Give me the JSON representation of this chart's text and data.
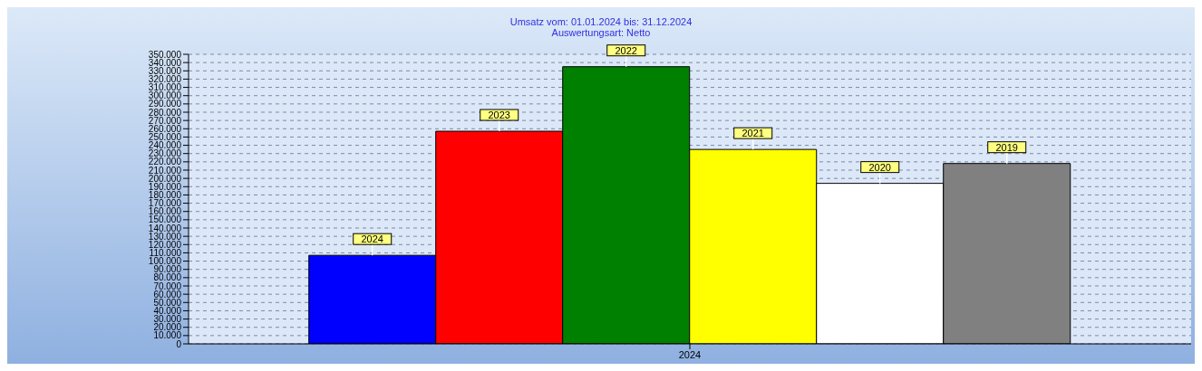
{
  "chart_data": {
    "type": "bar",
    "title": "Umsatz vom: 01.01.2024 bis: 31.12.2024",
    "subtitle": "Auswertungsart: Netto",
    "categories": [
      "2024"
    ],
    "series": [
      {
        "name": "2024",
        "color": "#0000ff",
        "values": [
          107000
        ]
      },
      {
        "name": "2023",
        "color": "#ff0000",
        "values": [
          257000
        ]
      },
      {
        "name": "2022",
        "color": "#008000",
        "values": [
          335000
        ]
      },
      {
        "name": "2021",
        "color": "#ffff00",
        "values": [
          235000
        ]
      },
      {
        "name": "2020",
        "color": "#ffffff",
        "values": [
          194000
        ]
      },
      {
        "name": "2019",
        "color": "#808080",
        "values": [
          218000
        ]
      }
    ],
    "ylim": [
      0,
      350000
    ],
    "yticks": [
      0,
      {
        "value": 10000,
        "label": "10.000"
      },
      {
        "value": 20000,
        "label": "20.000"
      },
      {
        "value": 30000,
        "label": "30.000"
      },
      {
        "value": 40000,
        "label": "40.000"
      },
      {
        "value": 50000,
        "label": "50.000"
      },
      {
        "value": 60000,
        "label": "60.000"
      },
      {
        "value": 70000,
        "label": "70.000"
      },
      {
        "value": 80000,
        "label": "80.000"
      },
      {
        "value": 90000,
        "label": "90.000"
      },
      {
        "value": 100000,
        "label": "100.000"
      },
      {
        "value": 110000,
        "label": "110.000"
      },
      {
        "value": 120000,
        "label": "120.000"
      },
      {
        "value": 130000,
        "label": "130.000"
      },
      {
        "value": 140000,
        "label": "140.000"
      },
      {
        "value": 150000,
        "label": "150.000"
      },
      {
        "value": 160000,
        "label": "160.000"
      },
      {
        "value": 170000,
        "label": "170.000"
      },
      {
        "value": 180000,
        "label": "180.000"
      },
      {
        "value": 190000,
        "label": "190.000"
      },
      {
        "value": 200000,
        "label": "200.000"
      },
      {
        "value": 210000,
        "label": "210.000"
      },
      {
        "value": 220000,
        "label": "220.000"
      },
      {
        "value": 230000,
        "label": "230.000"
      },
      {
        "value": 240000,
        "label": "240.000"
      },
      {
        "value": 250000,
        "label": "250.000"
      },
      {
        "value": 260000,
        "label": "260.000"
      },
      {
        "value": 270000,
        "label": "270.000"
      },
      {
        "value": 280000,
        "label": "280.000"
      },
      {
        "value": 290000,
        "label": "290.000"
      },
      {
        "value": 300000,
        "label": "300.000"
      },
      {
        "value": 310000,
        "label": "310.000"
      },
      {
        "value": 320000,
        "label": "320.000"
      },
      {
        "value": 330000,
        "label": "330.000"
      },
      {
        "value": 340000,
        "label": "340.000"
      },
      {
        "value": 350000,
        "label": "350.000"
      }
    ],
    "grid": "y"
  }
}
